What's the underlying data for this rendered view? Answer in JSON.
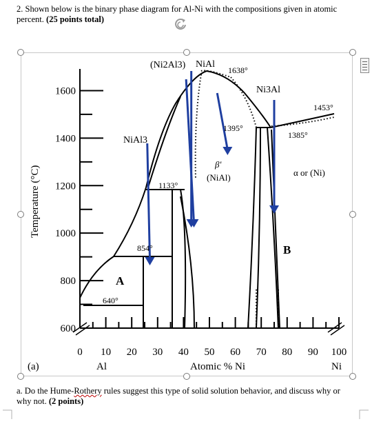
{
  "question": {
    "text": "2.  Shown below is the binary phase diagram for Al-Ni with the compositions given in atomic percent. ",
    "points": "(25 points total)"
  },
  "sub_question": {
    "prefix": "a. Do the Hume-",
    "misspelled": "Rothery",
    "rest": " rules suggest this type of solid solution behavior, and discuss why or why not. ",
    "points": "(2 points)"
  },
  "icons": [
    "rotate-icon",
    "layout-options-icon"
  ],
  "colors": {
    "arrow": "#1f3fa0",
    "handle": "#7a7a7a",
    "spellcheck": "#c00000"
  },
  "chart_data": {
    "type": "diagram",
    "panel_label": "(a)",
    "ylabel": "Temperature (°C)",
    "xlabel": "Atomic % Ni",
    "x_end_labels": {
      "left": "Al",
      "right": "Ni"
    },
    "ylim": [
      600,
      1700
    ],
    "xlim": [
      0,
      100
    ],
    "yticks": [
      600,
      800,
      1000,
      1200,
      1400,
      1600
    ],
    "xticks": [
      0,
      10,
      20,
      30,
      40,
      50,
      60,
      70,
      80,
      90,
      100
    ],
    "phase_labels": [
      "(Ni2Al3)",
      "NiAl",
      "Ni3Al",
      "NiAl3",
      "β'",
      "(NiAl)",
      "α or (Ni)",
      "A",
      "B"
    ],
    "temperature_labels": [
      "1638°",
      "1453°",
      "1395°",
      "1385°",
      "1133°",
      "854°",
      "640°"
    ],
    "arrows": [
      {
        "x_from": 26,
        "x_to": 27
      },
      {
        "x_from": 41,
        "x_to": 44
      },
      {
        "x_from": 43,
        "x_to": 43
      },
      {
        "x_from": 53,
        "x_to": 57
      },
      {
        "x_from": 75,
        "x_to": 75
      }
    ]
  }
}
